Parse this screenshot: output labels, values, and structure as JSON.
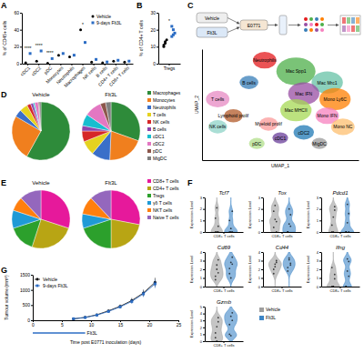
{
  "panel_labels": [
    "A",
    "B",
    "C",
    "D",
    "E",
    "F",
    "G"
  ],
  "schematic": {
    "labels": [
      "Vehicle",
      "Flt3L",
      "E0771"
    ]
  },
  "chart_data": [
    {
      "type": "strip",
      "ylabel": "% of CD45+ cells",
      "categories": [
        "cDC1",
        "cDC2",
        "pDC",
        "Monocytes",
        "Neutrophils",
        "Macrophages",
        "NK cells",
        "B cells",
        "CD4+ T cells",
        "CD8+ T cells"
      ],
      "series": [
        {
          "name": "Vehicle",
          "color": "#000000",
          "marker": "circle",
          "values": [
            1,
            3,
            0.5,
            10,
            8,
            40,
            2,
            1,
            3,
            2
          ]
        },
        {
          "name": "9-days Flt3L",
          "color": "#2b6cc4",
          "marker": "square",
          "values": [
            12,
            15,
            6,
            12,
            10,
            25,
            5,
            2,
            4,
            3
          ]
        }
      ],
      "ylim": [
        0,
        60
      ],
      "yticks": [
        0,
        20,
        40,
        60
      ],
      "legend": "upper right",
      "annotations": [
        {
          "x": "cDC1",
          "text": "****"
        },
        {
          "x": "cDC2",
          "text": "****"
        },
        {
          "x": "pDC",
          "text": "****"
        },
        {
          "x": "Macrophages",
          "text": "*"
        }
      ]
    },
    {
      "type": "strip",
      "ylabel": "% of CD4+ T cells",
      "categories": [
        "Tregs"
      ],
      "series": [
        {
          "color": "#000000",
          "marker": "circle",
          "values": [
            [
              10,
              12,
              14,
              11,
              13
            ]
          ]
        },
        {
          "color": "#2b6cc4",
          "marker": "square",
          "values": [
            [
              16,
              20,
              18,
              22,
              17
            ]
          ]
        }
      ],
      "ylim": [
        0,
        30
      ],
      "yticks": [
        0,
        10,
        20,
        30
      ],
      "annotations": [
        {
          "x": "Tregs",
          "text": "*"
        }
      ]
    },
    {
      "type": "scatter",
      "xlabel": "UMAP_1",
      "ylabel": "UMAP_2",
      "tick_labels": false,
      "categories": [
        "Neutrophils",
        "Mac Spp1",
        "Mac Mrc1",
        "Mono Ly6C",
        "Mac IFN",
        "Mono IFN",
        "Mono NC",
        "Mac MHCII",
        "B cells",
        "T cells",
        "NK cells",
        "Lymphoid prolif",
        "Myeloid prolif",
        "cDC2",
        "cDC1",
        "pDC",
        "MigDC"
      ],
      "x": [
        -2,
        2,
        6,
        7,
        3,
        6,
        8,
        2,
        -4,
        -8,
        -8,
        -6,
        -1.5,
        3,
        0,
        -3,
        5
      ],
      "values": [
        8,
        6,
        4,
        1,
        2,
        -2,
        -4,
        -1,
        4,
        1,
        -4,
        -2,
        -3.5,
        -5,
        -6,
        -7,
        -7
      ],
      "size": [
        1.5,
        2.5,
        2,
        2,
        2,
        1.5,
        1.5,
        2,
        1.2,
        1.5,
        1.2,
        1.2,
        1.2,
        1.3,
        1,
        1,
        1
      ],
      "colors": [
        "#e41a1c",
        "#4daf4a",
        "#66c2a5",
        "#ff7f00",
        "#984ea3",
        "#f781bf",
        "#fdbf6f",
        "#a6d854",
        "#377eb8",
        "#e78ac3",
        "#8dd3c7",
        "#b15928",
        "#fb9a99",
        "#1f78b4",
        "#6a3d9a",
        "#b2df8a",
        "#999999"
      ],
      "xlim": [
        -10,
        10
      ],
      "ylim": [
        -10,
        10
      ]
    },
    {
      "type": "pie",
      "legend": "right",
      "categories": [
        "Macrophages",
        "Monocytes",
        "Neutrophils",
        "T cells",
        "NK cells",
        "B cells",
        "cDC1",
        "cDC2",
        "pDC",
        "MigDC"
      ],
      "colors": [
        "#2e8b3a",
        "#f07f1e",
        "#3a6fc9",
        "#e5d21f",
        "#d62728",
        "#8e44ad",
        "#17becf",
        "#e377c2",
        "#8c564b",
        "#7f7f7f"
      ],
      "series": [
        {
          "name": "Vehicle",
          "values": [
            58.1,
            25.3,
            4.2,
            4.5,
            2.1,
            1.5,
            0.8,
            2.0,
            0.5,
            1.0
          ]
        },
        {
          "name": "Flt3L",
          "values": [
            30.5,
            20.2,
            10.3,
            8.0,
            6.0,
            3.0,
            6.5,
            9.5,
            3.0,
            3.0
          ]
        }
      ]
    },
    {
      "type": "pie",
      "legend": "right",
      "categories": [
        "CD8+ T cells",
        "CD4+ T cells",
        "Tregs",
        "γδ T cells",
        "NKT cells",
        "Naive T cells"
      ],
      "colors": [
        "#e6199b",
        "#b8a514",
        "#2ca02c",
        "#1f9ad6",
        "#ff7f0e",
        "#9467bd"
      ],
      "series": [
        {
          "name": "Vehicle",
          "values": [
            30,
            25,
            15,
            10,
            8,
            12
          ]
        },
        {
          "name": "Flt3L",
          "values": [
            28,
            22,
            20,
            8,
            10,
            12
          ]
        }
      ]
    },
    {
      "type": "violin",
      "ylabel": "Expression Level",
      "categories": [
        "CD8+ T cells"
      ],
      "legend": "right",
      "series": [
        {
          "name": "Vehicle",
          "color": "#9e9e9e"
        },
        {
          "name": "Flt3L",
          "color": "#3d85c6"
        }
      ],
      "panels": [
        {
          "title": "Tcf7",
          "ylim": [
            0,
            3
          ],
          "yticks": [
            0,
            1,
            2,
            3
          ],
          "values": [
            [
              0,
              0,
              0.5,
              1.2,
              2.1,
              0
            ],
            [
              0,
              0.3,
              0,
              1.0,
              0,
              1.8
            ]
          ]
        },
        {
          "title": "Tox",
          "ylim": [
            0,
            3
          ],
          "yticks": [
            0,
            1,
            2,
            3
          ],
          "values": [
            [
              0.4,
              1.1,
              0,
              1.8,
              2.3,
              0.9
            ],
            [
              0,
              0.7,
              1.5,
              0,
              2.0,
              0.5
            ]
          ]
        },
        {
          "title": "Pdcd1",
          "ylim": [
            0,
            3
          ],
          "yticks": [
            0,
            1,
            2,
            3
          ],
          "values": [
            [
              0,
              1.3,
              2.2,
              0.6,
              0,
              1.9
            ],
            [
              0,
              0.8,
              1.6,
              0,
              2.4,
              0
            ]
          ]
        },
        {
          "title": "Cd69",
          "ylim": [
            0,
            4
          ],
          "yticks": [
            0,
            1,
            2,
            3,
            4
          ],
          "values": [
            [
              1.2,
              2.5,
              3.1,
              0.8,
              2.0,
              1.6
            ],
            [
              1.5,
              2.8,
              3.4,
              2.1,
              1.0,
              2.6
            ]
          ]
        },
        {
          "title": "Cd44",
          "ylim": [
            0,
            4
          ],
          "yticks": [
            0,
            1,
            2,
            3,
            4
          ],
          "values": [
            [
              2.0,
              2.6,
              3.0,
              1.5,
              2.3,
              2.8
            ],
            [
              2.2,
              3.1,
              2.7,
              1.8,
              3.3,
              2.5
            ]
          ]
        },
        {
          "title": "Ifng",
          "ylim": [
            0,
            4
          ],
          "yticks": [
            0,
            1,
            2,
            3,
            4
          ],
          "values": [
            [
              0,
              0,
              1.4,
              2.2,
              0,
              0.9
            ],
            [
              0,
              1.8,
              2.9,
              0,
              3.2,
              1.2
            ]
          ]
        },
        {
          "title": "Gzmb",
          "ylim": [
            0,
            5
          ],
          "yticks": [
            0,
            1,
            2,
            3,
            4,
            5
          ],
          "values": [
            [
              0.5,
              2.1,
              3.4,
              1.2,
              0,
              2.8
            ],
            [
              1.0,
              3.6,
              4.1,
              2.4,
              0.8,
              3.0
            ]
          ]
        }
      ]
    },
    {
      "type": "line",
      "xlabel": "Time post E0771 inoculation (days)",
      "ylabel": "Tumour volume (mm³)",
      "x": [
        7,
        9,
        11,
        13,
        15,
        17,
        19,
        21
      ],
      "series": [
        {
          "name": "Vehicle",
          "color": "#000000",
          "marker": "circle",
          "values": [
            45,
            95,
            180,
            310,
            460,
            650,
            900,
            1250
          ],
          "errors": [
            8,
            15,
            25,
            40,
            60,
            85,
            110,
            150
          ]
        },
        {
          "name": "9-days Flt3L",
          "color": "#2b6cc4",
          "marker": "square",
          "values": [
            50,
            90,
            170,
            290,
            440,
            620,
            870,
            1200
          ],
          "errors": [
            9,
            14,
            24,
            38,
            55,
            80,
            105,
            140
          ]
        }
      ],
      "xlim": [
        0,
        25
      ],
      "xticks": [
        0,
        5,
        10,
        15,
        20,
        25
      ],
      "ylim": [
        0,
        1500
      ],
      "yticks": [
        0,
        500,
        1000,
        1500
      ],
      "legend": "upper left",
      "annotations": [
        {
          "text": "Flt3L",
          "x": [
            0,
            9
          ]
        }
      ]
    }
  ]
}
